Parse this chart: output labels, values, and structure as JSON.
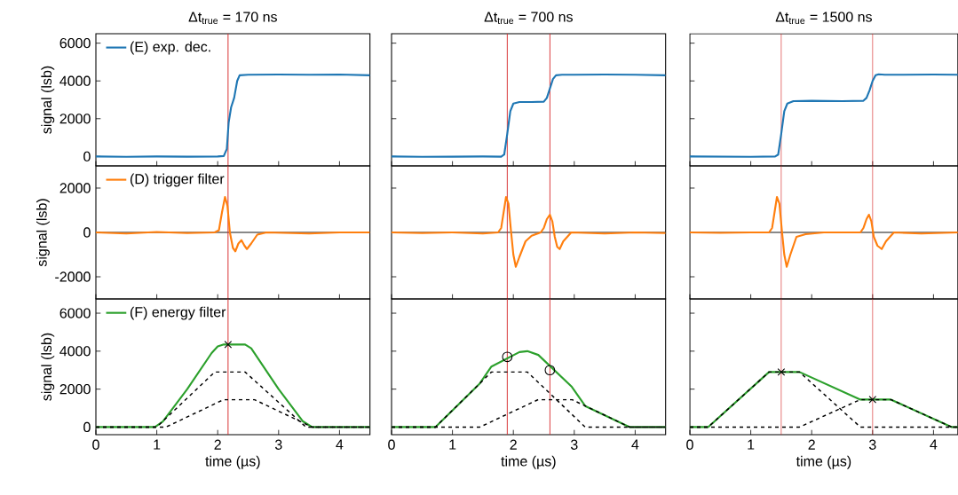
{
  "chart_data": [
    {
      "type": "line",
      "title": "Δt$_{true}$ = 170 ns",
      "ylabel": "signal (lsb)",
      "legend": "top left",
      "tick_labels": "y",
      "xlim": [
        0,
        4.5
      ],
      "ylim": [
        -500,
        6500
      ],
      "xticks": [
        0,
        1,
        2,
        3,
        4
      ],
      "yticks": [
        0,
        2000,
        4000,
        6000
      ],
      "ref_lines": [
        {
          "axis": "x",
          "value": 2.17,
          "color": "#d62728"
        }
      ],
      "series": [
        {
          "name": "(E) exp. dec.",
          "color": "#1f77b4",
          "x": [
            0,
            0.5,
            1,
            1.5,
            2.0,
            2.1,
            2.15,
            2.18,
            2.22,
            2.27,
            2.32,
            2.36,
            2.5,
            3,
            3.5,
            4,
            4.5
          ],
          "values": [
            0,
            -20,
            0,
            -10,
            0,
            20,
            400,
            1800,
            2600,
            3100,
            4000,
            4300,
            4330,
            4340,
            4330,
            4340,
            4300
          ]
        }
      ]
    },
    {
      "type": "line",
      "title": "Δt$_{true}$ = 700 ns",
      "tick_labels": false,
      "xlim": [
        0,
        4.5
      ],
      "ylim": [
        -500,
        6500
      ],
      "xticks": [
        0,
        1,
        2,
        3,
        4
      ],
      "yticks": [
        0,
        2000,
        4000,
        6000
      ],
      "ref_lines": [
        {
          "axis": "x",
          "value": 1.9,
          "color": "#d62728"
        },
        {
          "axis": "x",
          "value": 2.6,
          "color": "#d62728"
        }
      ],
      "series": [
        {
          "color": "#1f77b4",
          "x": [
            0,
            0.5,
            1,
            1.5,
            1.8,
            1.85,
            1.9,
            1.95,
            2.0,
            2.1,
            2.3,
            2.5,
            2.55,
            2.6,
            2.65,
            2.7,
            2.8,
            3,
            3.5,
            4,
            4.5
          ],
          "values": [
            0,
            -20,
            -10,
            0,
            -10,
            100,
            1200,
            2400,
            2800,
            2880,
            2880,
            2900,
            3100,
            3600,
            4100,
            4300,
            4330,
            4330,
            4340,
            4330,
            4300
          ]
        }
      ]
    },
    {
      "type": "line",
      "title": "Δt$_{true}$ = 1500 ns",
      "tick_labels": false,
      "xlim": [
        0,
        4.4
      ],
      "ylim": [
        -500,
        6500
      ],
      "xticks": [
        0,
        1,
        2,
        3,
        4
      ],
      "yticks": [
        0,
        2000,
        4000,
        6000
      ],
      "ref_lines": [
        {
          "axis": "x",
          "value": 1.5,
          "color": "#d62728"
        },
        {
          "axis": "x",
          "value": 3.0,
          "color": "#d62728"
        }
      ],
      "series": [
        {
          "color": "#1f77b4",
          "x": [
            0,
            0.5,
            1,
            1.4,
            1.45,
            1.5,
            1.55,
            1.6,
            1.7,
            2,
            2.5,
            2.85,
            2.9,
            2.95,
            3.0,
            3.05,
            3.1,
            3.2,
            3.5,
            4,
            4.4
          ],
          "values": [
            0,
            -10,
            -20,
            0,
            100,
            1200,
            2400,
            2800,
            2930,
            2950,
            2930,
            2950,
            3100,
            3500,
            4000,
            4300,
            4350,
            4330,
            4330,
            4340,
            4330
          ]
        }
      ]
    },
    {
      "type": "line",
      "ylabel": "signal (lsb)",
      "legend": "top left",
      "tick_labels": "y",
      "xlim": [
        0,
        4.5
      ],
      "ylim": [
        -3000,
        3000
      ],
      "xticks": [
        0,
        1,
        2,
        3,
        4
      ],
      "yticks": [
        -2000,
        0,
        2000
      ],
      "ref_lines": [
        {
          "axis": "y",
          "value": 0,
          "color": "#000000"
        },
        {
          "axis": "x",
          "value": 2.17,
          "color": "#d62728"
        }
      ],
      "series": [
        {
          "name": "(D) trigger filter",
          "color": "#ff7f0e",
          "x": [
            0,
            0.5,
            1,
            1.5,
            1.95,
            2.02,
            2.07,
            2.12,
            2.16,
            2.2,
            2.25,
            2.29,
            2.34,
            2.39,
            2.44,
            2.48,
            2.55,
            2.65,
            2.8,
            3.5,
            4,
            4.5
          ],
          "values": [
            0,
            -50,
            20,
            -30,
            0,
            100,
            900,
            1600,
            1200,
            0,
            -700,
            -850,
            -500,
            -350,
            -600,
            -750,
            -500,
            -100,
            0,
            -50,
            0,
            0
          ]
        }
      ]
    },
    {
      "type": "line",
      "tick_labels": false,
      "xlim": [
        0,
        4.5
      ],
      "ylim": [
        -3000,
        3000
      ],
      "xticks": [
        0,
        1,
        2,
        3,
        4
      ],
      "yticks": [
        -2000,
        0,
        2000
      ],
      "ref_lines": [
        {
          "axis": "y",
          "value": 0,
          "color": "#000000"
        },
        {
          "axis": "x",
          "value": 1.9,
          "color": "#d62728"
        },
        {
          "axis": "x",
          "value": 2.6,
          "color": "#d62728"
        }
      ],
      "series": [
        {
          "color": "#ff7f0e",
          "x": [
            0,
            0.5,
            1,
            1.5,
            1.75,
            1.8,
            1.84,
            1.88,
            1.92,
            1.96,
            2.0,
            2.04,
            2.1,
            2.2,
            2.3,
            2.45,
            2.5,
            2.55,
            2.6,
            2.64,
            2.68,
            2.72,
            2.76,
            2.82,
            2.95,
            3.5,
            4,
            4.5
          ],
          "values": [
            0,
            -30,
            0,
            -50,
            0,
            200,
            900,
            1600,
            1300,
            100,
            -1000,
            -1550,
            -1100,
            -400,
            -150,
            0,
            200,
            600,
            800,
            500,
            -200,
            -650,
            -750,
            -400,
            0,
            -50,
            0,
            -30
          ]
        }
      ]
    },
    {
      "type": "line",
      "tick_labels": false,
      "xlim": [
        0,
        4.4
      ],
      "ylim": [
        -3000,
        3000
      ],
      "xticks": [
        0,
        1,
        2,
        3,
        4
      ],
      "yticks": [
        -2000,
        0,
        2000
      ],
      "ref_lines": [
        {
          "axis": "y",
          "value": 0,
          "color": "#000000"
        },
        {
          "axis": "x",
          "value": 1.5,
          "color": "#d62728"
        },
        {
          "axis": "x",
          "value": 3.0,
          "color": "#d62728"
        }
      ],
      "series": [
        {
          "color": "#ff7f0e",
          "x": [
            0,
            0.5,
            1,
            1.3,
            1.35,
            1.39,
            1.43,
            1.47,
            1.51,
            1.55,
            1.59,
            1.65,
            1.75,
            1.9,
            2.2,
            2.8,
            2.85,
            2.9,
            2.94,
            2.98,
            3.02,
            3.08,
            3.15,
            3.22,
            3.35,
            3.8,
            4.4
          ],
          "values": [
            0,
            -20,
            0,
            0,
            200,
            900,
            1600,
            1300,
            100,
            -1000,
            -1550,
            -1000,
            -200,
            -80,
            0,
            0,
            200,
            600,
            800,
            500,
            -200,
            -600,
            -750,
            -400,
            0,
            -50,
            0
          ]
        }
      ]
    },
    {
      "type": "line",
      "xlabel": "time (µs)",
      "ylabel": "signal (lsb)",
      "legend": "top left",
      "xlim": [
        0,
        4.5
      ],
      "ylim": [
        -400,
        6750
      ],
      "xticks": [
        0,
        1,
        2,
        3,
        4
      ],
      "yticks": [
        0,
        2000,
        4000,
        6000
      ],
      "ref_lines": [
        {
          "axis": "x",
          "value": 2.17,
          "color": "#d62728"
        }
      ],
      "series": [
        {
          "name": "(F) energy filter",
          "color": "#2ca02c",
          "x": [
            0,
            0.97,
            1.1,
            1.5,
            1.9,
            2.0,
            2.1,
            2.45,
            2.55,
            3.0,
            3.4,
            3.55,
            4.5
          ],
          "values": [
            0,
            0,
            300,
            2000,
            3900,
            4250,
            4350,
            4350,
            4150,
            2000,
            300,
            0,
            0
          ]
        },
        {
          "color": "#000000",
          "line_style": "dashed",
          "x": [
            0,
            1.0,
            1.95,
            2.45,
            3.45,
            4.5
          ],
          "values": [
            0,
            0,
            2900,
            2900,
            0,
            0
          ]
        },
        {
          "color": "#000000",
          "line_style": "dashed",
          "x": [
            0,
            1.15,
            2.1,
            2.6,
            3.55,
            4.5
          ],
          "values": [
            0,
            0,
            1450,
            1450,
            0,
            0
          ]
        },
        {
          "type": "scatter",
          "marker": "cross",
          "color": "#000000",
          "x": [
            2.17
          ],
          "values": [
            4350
          ]
        }
      ]
    },
    {
      "type": "line",
      "xlabel": "time (µs)",
      "tick_labels": "x",
      "xlim": [
        0,
        4.5
      ],
      "ylim": [
        -400,
        6750
      ],
      "xticks": [
        0,
        1,
        2,
        3,
        4
      ],
      "yticks": [
        0,
        2000,
        4000,
        6000
      ],
      "ref_lines": [
        {
          "axis": "x",
          "value": 1.9,
          "color": "#d62728"
        },
        {
          "axis": "x",
          "value": 2.6,
          "color": "#d62728"
        }
      ],
      "series": [
        {
          "color": "#2ca02c",
          "x": [
            0,
            0.72,
            1.45,
            1.64,
            2.1,
            2.23,
            2.41,
            2.96,
            3.18,
            3.91,
            4.5
          ],
          "values": [
            0,
            0,
            2300,
            3190,
            3950,
            4000,
            3800,
            2120,
            1110,
            0,
            0
          ]
        },
        {
          "color": "#000000",
          "line_style": "dashed",
          "x": [
            0,
            0.72,
            1.64,
            2.23,
            3.18,
            4.5
          ],
          "values": [
            0,
            0,
            2900,
            2900,
            0,
            0
          ]
        },
        {
          "color": "#000000",
          "line_style": "dashed",
          "x": [
            0,
            1.45,
            2.41,
            2.96,
            3.91,
            4.5
          ],
          "values": [
            0,
            0,
            1450,
            1450,
            0,
            0
          ]
        },
        {
          "type": "scatter",
          "marker": "circle",
          "color": "#000000",
          "x": [
            1.9,
            2.6
          ],
          "values": [
            3700,
            3000
          ]
        }
      ]
    },
    {
      "type": "line",
      "xlabel": "time (µs)",
      "tick_labels": "x",
      "xlim": [
        0,
        4.4
      ],
      "ylim": [
        -400,
        6750
      ],
      "xticks": [
        0,
        1,
        2,
        3,
        4
      ],
      "yticks": [
        0,
        2000,
        4000,
        6000
      ],
      "ref_lines": [
        {
          "axis": "x",
          "value": 1.5,
          "color": "#d62728"
        },
        {
          "axis": "x",
          "value": 3.0,
          "color": "#d62728"
        }
      ],
      "series": [
        {
          "color": "#2ca02c",
          "x": [
            0,
            0.3,
            1.3,
            1.8,
            2.8,
            3.3,
            4.3,
            4.4
          ],
          "values": [
            0,
            0,
            2900,
            2900,
            1450,
            1450,
            0,
            0
          ]
        },
        {
          "color": "#000000",
          "line_style": "dashed",
          "x": [
            0,
            0.3,
            1.3,
            1.8,
            2.8,
            4.4
          ],
          "values": [
            0,
            0,
            2900,
            2900,
            0,
            0
          ]
        },
        {
          "color": "#000000",
          "line_style": "dashed",
          "x": [
            0,
            1.8,
            2.8,
            3.3,
            4.3,
            4.4
          ],
          "values": [
            0,
            0,
            1450,
            1450,
            0,
            0
          ]
        },
        {
          "type": "scatter",
          "marker": "cross",
          "color": "#000000",
          "x": [
            1.5,
            3.0
          ],
          "values": [
            2900,
            1450
          ]
        }
      ]
    }
  ]
}
